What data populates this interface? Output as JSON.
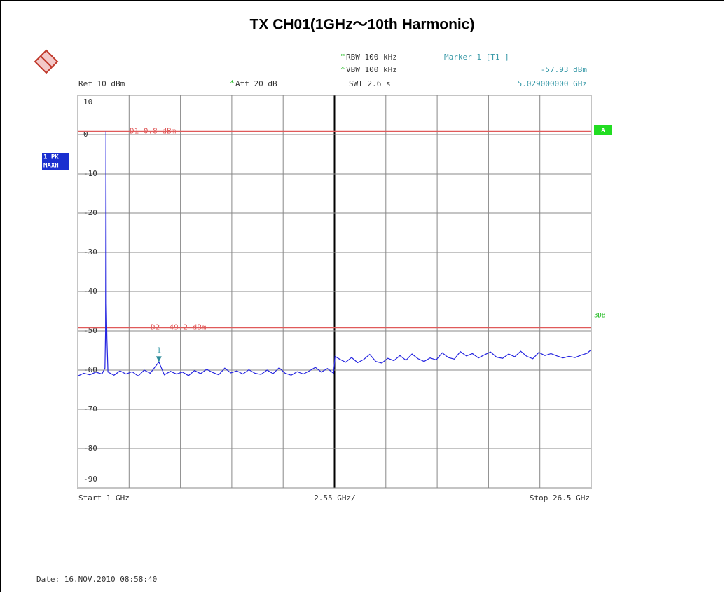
{
  "chart_data": {
    "type": "line",
    "title": "TX CH01(1GHz～10th Harmonic)",
    "asterisk": "*",
    "rbw": "RBW 100 kHz",
    "vbw": "VBW 100 kHz",
    "swt": "SWT 2.6 s",
    "att": "Att 20 dB",
    "ref": "Ref  10 dBm",
    "marker_title": "Marker 1 [T1 ]",
    "marker": {
      "label": "1",
      "x": 5.029,
      "y": -57.93,
      "x_label": "5.029000000 GHz",
      "y_label": "-57.93 dBm"
    },
    "trace_labels": [
      "1 PK",
      "MAXH"
    ],
    "side_labels": [
      "A",
      "3DB"
    ],
    "start_label": "Start 1 GHz",
    "span_label": "2.55 GHz/",
    "stop_label": "Stop 26.5 GHz",
    "date": "Date: 16.NOV.2010  08:58:40",
    "lines": [
      {
        "name": "D1",
        "value": 0.8,
        "label": "D1 0.8 dBm",
        "color": "#e05a5a"
      },
      {
        "name": "D2",
        "value": -49.2,
        "label": "D2 -49.2 dBm",
        "color": "#e05a5a"
      }
    ],
    "xlim": [
      1,
      26.5
    ],
    "xticks": [
      1,
      3.55,
      6.1,
      8.65,
      11.2,
      13.75,
      16.3,
      18.85,
      21.4,
      23.95,
      26.5
    ],
    "ylim": [
      -90,
      10
    ],
    "yticks": [
      10,
      0,
      -10,
      -20,
      -30,
      -40,
      -50,
      -60,
      -70,
      -80,
      -90
    ],
    "grid": true,
    "series": [
      {
        "name": "1 PK MAXH",
        "color": "#2424e0",
        "x": [
          1.0,
          1.3,
          1.6,
          1.9,
          2.2,
          2.35,
          2.38,
          2.4,
          2.42,
          2.45,
          2.5,
          2.8,
          3.1,
          3.4,
          3.7,
          4.0,
          4.3,
          4.6,
          5.029,
          5.3,
          5.6,
          5.9,
          6.2,
          6.5,
          6.8,
          7.1,
          7.4,
          7.7,
          8.0,
          8.3,
          8.6,
          8.9,
          9.2,
          9.5,
          9.8,
          10.1,
          10.4,
          10.7,
          11.0,
          11.3,
          11.6,
          11.9,
          12.2,
          12.5,
          12.8,
          13.1,
          13.4,
          13.7,
          13.78,
          14.0,
          14.3,
          14.6,
          14.9,
          15.2,
          15.5,
          15.8,
          16.1,
          16.4,
          16.7,
          17.0,
          17.3,
          17.6,
          17.9,
          18.2,
          18.5,
          18.8,
          19.1,
          19.4,
          19.7,
          20.0,
          20.3,
          20.6,
          20.9,
          21.2,
          21.5,
          21.8,
          22.1,
          22.4,
          22.7,
          23.0,
          23.3,
          23.6,
          23.9,
          24.2,
          24.5,
          24.8,
          25.1,
          25.4,
          25.7,
          26.0,
          26.3,
          26.5
        ],
        "values": [
          -61.5,
          -60.8,
          -61.2,
          -60.5,
          -61.0,
          -59.5,
          -50,
          0.8,
          -43,
          -52,
          -60.5,
          -61.3,
          -60.2,
          -61.0,
          -60.4,
          -61.5,
          -60.0,
          -60.8,
          -57.93,
          -61.2,
          -60.3,
          -61.0,
          -60.5,
          -61.4,
          -60.1,
          -60.9,
          -59.8,
          -60.6,
          -61.2,
          -59.5,
          -60.7,
          -60.2,
          -61.0,
          -59.9,
          -60.8,
          -61.1,
          -60.0,
          -60.9,
          -59.4,
          -60.8,
          -61.3,
          -60.4,
          -61.0,
          -60.2,
          -59.3,
          -60.5,
          -59.6,
          -60.8,
          -56.5,
          -57.2,
          -58.0,
          -56.8,
          -58.1,
          -57.3,
          -56.0,
          -57.8,
          -58.2,
          -57.0,
          -57.6,
          -56.3,
          -57.5,
          -55.9,
          -57.1,
          -57.8,
          -56.9,
          -57.4,
          -55.6,
          -56.8,
          -57.2,
          -55.3,
          -56.4,
          -55.8,
          -56.9,
          -56.1,
          -55.4,
          -56.7,
          -57.0,
          -55.9,
          -56.6,
          -55.2,
          -56.5,
          -57.1,
          -55.5,
          -56.3,
          -55.8,
          -56.4,
          -56.9,
          -56.5,
          -56.8,
          -56.2,
          -55.7,
          -54.8
        ]
      }
    ]
  }
}
